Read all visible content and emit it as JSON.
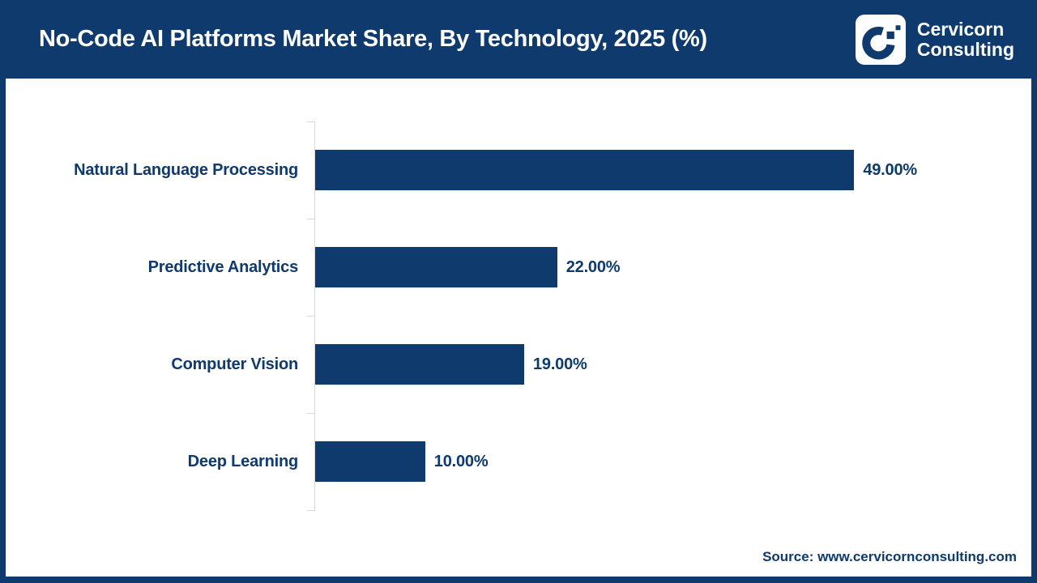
{
  "header": {
    "title": "No-Code AI Platforms Market Share, By Technology, 2025 (%)",
    "brand": {
      "logo_icon": "cervicorn-c-logo",
      "name_line1": "Cervicorn",
      "name_line2": "Consulting"
    }
  },
  "chart_data": {
    "type": "bar",
    "orientation": "horizontal",
    "title": "No-Code AI Platforms Market Share, By Technology, 2025 (%)",
    "categories": [
      "Natural Language Processing",
      "Predictive Analytics",
      "Computer Vision",
      "Deep Learning"
    ],
    "values": [
      49,
      22,
      19,
      10
    ],
    "value_labels": [
      "49.00%",
      "22.00%",
      "19.00%",
      "10.00%"
    ],
    "unit": "%",
    "xlabel": "",
    "ylabel": "",
    "xlim": [
      0,
      64
    ],
    "grid": false,
    "legend": "none",
    "bar_color": "#0e3a6e",
    "axis_line_color": "#d9d9d9",
    "label_color": "#0e3a6e"
  },
  "footer": {
    "source": "Source: www.cervicornconsulting.com"
  },
  "colors": {
    "navy": "#0e3a6e",
    "white": "#ffffff",
    "axis_gray": "#d9d9d9"
  }
}
